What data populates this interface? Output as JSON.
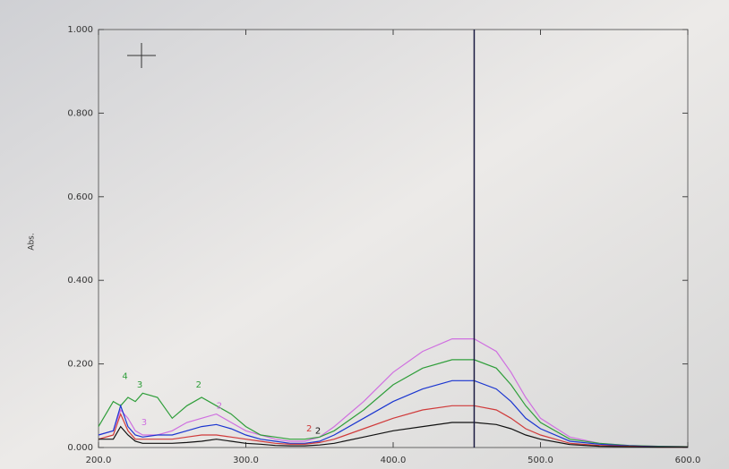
{
  "chart_data": {
    "type": "line",
    "y_label": "Abs.",
    "x": [
      200,
      210,
      215,
      220,
      225,
      230,
      240,
      250,
      260,
      270,
      280,
      290,
      300,
      310,
      320,
      330,
      340,
      350,
      360,
      380,
      400,
      420,
      440,
      455,
      470,
      480,
      490,
      500,
      520,
      540,
      560,
      580,
      600
    ],
    "series": [
      {
        "color": "#cf6fe0",
        "values": [
          0.03,
          0.04,
          0.09,
          0.07,
          0.04,
          0.03,
          0.03,
          0.04,
          0.06,
          0.07,
          0.08,
          0.06,
          0.04,
          0.03,
          0.02,
          0.015,
          0.015,
          0.025,
          0.05,
          0.11,
          0.18,
          0.23,
          0.26,
          0.26,
          0.23,
          0.18,
          0.12,
          0.07,
          0.025,
          0.01,
          0.005,
          0.003,
          0.002
        ]
      },
      {
        "color": "#2f9e3a",
        "values": [
          0.05,
          0.11,
          0.1,
          0.12,
          0.11,
          0.13,
          0.12,
          0.07,
          0.1,
          0.12,
          0.1,
          0.08,
          0.05,
          0.03,
          0.025,
          0.02,
          0.02,
          0.025,
          0.04,
          0.09,
          0.15,
          0.19,
          0.21,
          0.21,
          0.19,
          0.15,
          0.1,
          0.06,
          0.02,
          0.01,
          0.005,
          0.003,
          0.002
        ]
      },
      {
        "color": "#1a35d0",
        "values": [
          0.03,
          0.04,
          0.1,
          0.05,
          0.03,
          0.025,
          0.03,
          0.03,
          0.04,
          0.05,
          0.055,
          0.045,
          0.03,
          0.02,
          0.015,
          0.01,
          0.01,
          0.015,
          0.03,
          0.07,
          0.11,
          0.14,
          0.16,
          0.16,
          0.14,
          0.11,
          0.07,
          0.045,
          0.015,
          0.008,
          0.004,
          0.002,
          0.001
        ]
      },
      {
        "color": "#d03a3a",
        "values": [
          0.02,
          0.03,
          0.08,
          0.04,
          0.02,
          0.02,
          0.02,
          0.02,
          0.025,
          0.03,
          0.03,
          0.025,
          0.02,
          0.015,
          0.01,
          0.008,
          0.008,
          0.012,
          0.02,
          0.045,
          0.07,
          0.09,
          0.1,
          0.1,
          0.09,
          0.07,
          0.045,
          0.03,
          0.01,
          0.005,
          0.003,
          0.001,
          0.001
        ]
      },
      {
        "color": "#111111",
        "values": [
          0.02,
          0.02,
          0.05,
          0.03,
          0.015,
          0.01,
          0.01,
          0.01,
          0.012,
          0.015,
          0.02,
          0.015,
          0.01,
          0.008,
          0.005,
          0.004,
          0.004,
          0.006,
          0.01,
          0.025,
          0.04,
          0.05,
          0.06,
          0.06,
          0.055,
          0.045,
          0.03,
          0.02,
          0.007,
          0.003,
          0.002,
          0.001,
          0.001
        ]
      }
    ],
    "annotations": [
      {
        "text": "4",
        "x": 218,
        "y": 0.17,
        "color": "#2f9e3a"
      },
      {
        "text": "3",
        "x": 228,
        "y": 0.15,
        "color": "#2f9e3a"
      },
      {
        "text": "2",
        "x": 268,
        "y": 0.15,
        "color": "#2f9e3a"
      },
      {
        "text": "2",
        "x": 282,
        "y": 0.1,
        "color": "#cf6fe0"
      },
      {
        "text": "3",
        "x": 231,
        "y": 0.06,
        "color": "#cf6fe0"
      },
      {
        "text": "2",
        "x": 343,
        "y": 0.045,
        "color": "#d03a3a"
      },
      {
        "text": "2",
        "x": 349,
        "y": 0.04,
        "color": "#111111"
      }
    ],
    "cursor_x": 455,
    "xlim": [
      200,
      600
    ],
    "ylim": [
      0,
      1
    ],
    "xticks": [
      {
        "value": 200,
        "label": "200.0"
      },
      {
        "value": 300,
        "label": "300.0"
      },
      {
        "value": 400,
        "label": "400.0"
      },
      {
        "value": 500,
        "label": "500.0"
      },
      {
        "value": 600,
        "label": "600.0"
      }
    ],
    "yticks": [
      {
        "value": 0,
        "label": "0.000"
      },
      {
        "value": 0.2,
        "label": "0.200"
      },
      {
        "value": 0.4,
        "label": "0.400"
      },
      {
        "value": 0.6,
        "label": "0.600"
      },
      {
        "value": 0.8,
        "label": "0.800"
      },
      {
        "value": 1,
        "label": "1.000"
      }
    ]
  }
}
